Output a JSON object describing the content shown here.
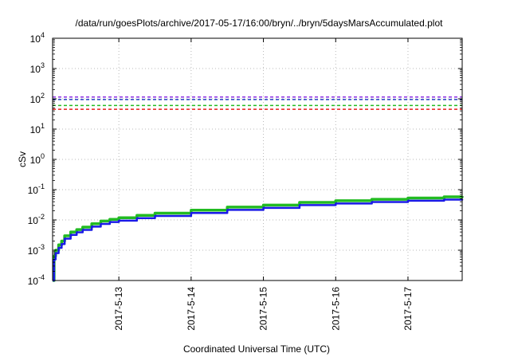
{
  "chart_data": {
    "type": "line",
    "title": "/data/run/goesPlots/archive/2017-05-17/16:00/bryn/../bryn/5daysMarsAccumulated.plot",
    "xlabel": "Coordinated Universal Time (UTC)",
    "ylabel": "cSv",
    "x_type": "date",
    "xlim": [
      "2017-05-12T02:00",
      "2017-05-17T18:00"
    ],
    "ylim": [
      0.0001,
      10000
    ],
    "y_scale": "log",
    "grid": true,
    "grid_style": "dotted",
    "legend": "none",
    "x_ticks": [
      "2017-5-13",
      "2017-5-14",
      "2017-5-15",
      "2017-5-16",
      "2017-5-17"
    ],
    "y_ticks": [
      {
        "base": "10",
        "exp": "-4",
        "value": 0.0001
      },
      {
        "base": "10",
        "exp": "-3",
        "value": 0.001
      },
      {
        "base": "10",
        "exp": "-2",
        "value": 0.01
      },
      {
        "base": "10",
        "exp": "-1",
        "value": 0.1
      },
      {
        "base": "10",
        "exp": "0",
        "value": 1
      },
      {
        "base": "10",
        "exp": "1",
        "value": 10
      },
      {
        "base": "10",
        "exp": "2",
        "value": 100
      },
      {
        "base": "10",
        "exp": "3",
        "value": 1000
      },
      {
        "base": "10",
        "exp": "4",
        "value": 10000
      }
    ],
    "reference_lines": [
      {
        "value": 115,
        "color": "#8b2be2",
        "style": "dashed"
      },
      {
        "value": 95,
        "color": "#1f3fbf",
        "style": "dashed"
      },
      {
        "value": 60,
        "color": "#22bb22",
        "style": "dashed"
      },
      {
        "value": 45,
        "color": "#e81c1c",
        "style": "dashed"
      }
    ],
    "series": [
      {
        "color": "#22bb22",
        "x": [
          "2017-05-12T02:00",
          "2017-05-12T02:30",
          "2017-05-12T03:00",
          "2017-05-12T04:00",
          "2017-05-12T05:00",
          "2017-05-12T06:00",
          "2017-05-12T08:00",
          "2017-05-12T10:00",
          "2017-05-12T12:00",
          "2017-05-12T15:00",
          "2017-05-12T18:00",
          "2017-05-12T21:00",
          "2017-05-13T00:00",
          "2017-05-13T06:00",
          "2017-05-13T12:00",
          "2017-05-14T00:00",
          "2017-05-14T12:00",
          "2017-05-15T00:00",
          "2017-05-15T12:00",
          "2017-05-16T00:00",
          "2017-05-16T12:00",
          "2017-05-17T00:00",
          "2017-05-17T12:00",
          "2017-05-17T18:00"
        ],
        "y": [
          0.0001,
          0.00065,
          0.001,
          0.0015,
          0.002,
          0.003,
          0.004,
          0.0048,
          0.0058,
          0.0075,
          0.0092,
          0.0105,
          0.0118,
          0.0142,
          0.0168,
          0.021,
          0.0265,
          0.031,
          0.038,
          0.043,
          0.048,
          0.053,
          0.058,
          0.061
        ]
      },
      {
        "color": "#1a1ae6",
        "x": [
          "2017-05-12T02:00",
          "2017-05-12T02:30",
          "2017-05-12T03:00",
          "2017-05-12T04:00",
          "2017-05-12T05:00",
          "2017-05-12T06:00",
          "2017-05-12T08:00",
          "2017-05-12T10:00",
          "2017-05-12T12:00",
          "2017-05-12T15:00",
          "2017-05-12T18:00",
          "2017-05-12T21:00",
          "2017-05-13T00:00",
          "2017-05-13T06:00",
          "2017-05-13T12:00",
          "2017-05-14T00:00",
          "2017-05-14T12:00",
          "2017-05-15T00:00",
          "2017-05-15T12:00",
          "2017-05-16T00:00",
          "2017-05-16T12:00",
          "2017-05-17T00:00",
          "2017-05-17T12:00",
          "2017-05-17T18:00"
        ],
        "y": [
          8e-05,
          0.0005,
          0.0008,
          0.0012,
          0.0016,
          0.0024,
          0.0032,
          0.0039,
          0.0047,
          0.006,
          0.0074,
          0.0085,
          0.0095,
          0.0115,
          0.0135,
          0.017,
          0.0215,
          0.025,
          0.031,
          0.035,
          0.039,
          0.043,
          0.047,
          0.049
        ]
      }
    ]
  }
}
